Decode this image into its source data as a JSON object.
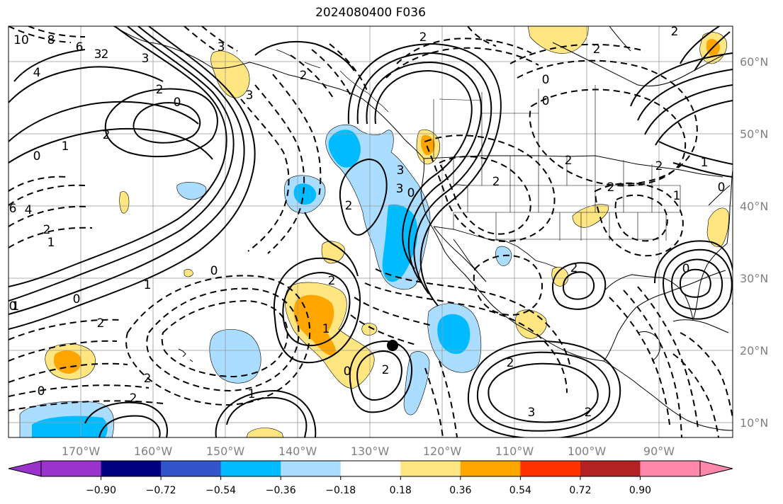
{
  "title": "2024080400 F036",
  "map": {
    "region": "North-East Pacific / North America",
    "projection": "lat-lon",
    "lon_ticks": [
      "170°W",
      "160°W",
      "150°W",
      "140°W",
      "130°W",
      "120°W",
      "110°W",
      "100°W",
      "90°W"
    ],
    "lat_ticks": [
      "60°N",
      "50°N",
      "40°N",
      "30°N",
      "20°N",
      "10°N"
    ],
    "contour_lines": "black, solid positive / dashed negative",
    "marker": {
      "type": "black-dot",
      "lon": -127.5,
      "lat": 20.5
    }
  },
  "colorbar": {
    "orientation": "horizontal",
    "extend": "both",
    "colors": [
      "#9933cc",
      "#000080",
      "#3355cc",
      "#00bbff",
      "#aaddff",
      "#ffffff",
      "#ffe680",
      "#ffa500",
      "#ff3300",
      "#b22222",
      "#ff88aa"
    ],
    "tick_labels": [
      "−0.90",
      "−0.72",
      "−0.54",
      "−0.36",
      "−0.18",
      "0.18",
      "0.36",
      "0.54",
      "0.72",
      "0.90"
    ]
  },
  "contour_labels": [
    "10",
    "8",
    "6",
    "4",
    "2",
    "1",
    "0",
    "6",
    "4",
    "2",
    "1",
    "0",
    "2",
    "2",
    "3",
    "3",
    "3",
    "3",
    "2",
    "0",
    "1",
    "0",
    "2",
    "2",
    "0",
    "2",
    "1",
    "2",
    "1",
    "0",
    "2",
    "3",
    "3",
    "0",
    "2",
    "2",
    "2",
    "0",
    "2",
    "0",
    "2",
    "1",
    "2",
    "3",
    "2",
    "2",
    "2",
    "0",
    "1",
    "0",
    "2",
    "2",
    "1",
    "0"
  ]
}
